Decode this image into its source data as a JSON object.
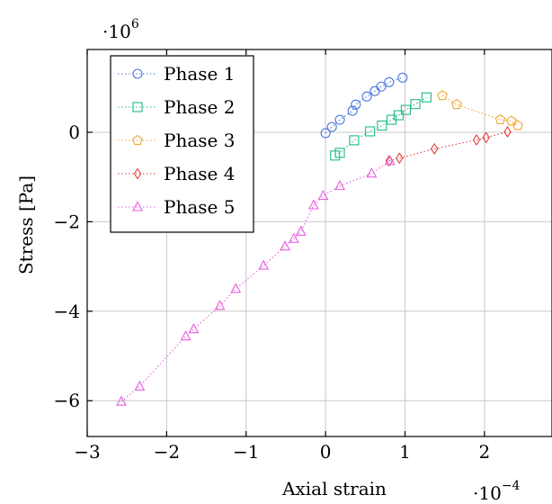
{
  "chart_data": {
    "type": "scatter",
    "title": "",
    "xlabel": "Axial strain",
    "ylabel": "Stress [Pa]",
    "x_multiplier_label": {
      "base": "·10",
      "exp": "−4"
    },
    "y_multiplier_label": {
      "base": "·10",
      "exp": "6"
    },
    "xlim": [
      -3,
      2.85
    ],
    "ylim": [
      -6.8,
      1.85
    ],
    "x_ticks": [
      -3,
      -2,
      -1,
      0,
      1,
      2
    ],
    "x_tick_labels": [
      "−3",
      "−2",
      "−1",
      "0",
      "1",
      "2"
    ],
    "y_ticks": [
      -6,
      -4,
      -2,
      0
    ],
    "y_tick_labels": [
      "−6",
      "−4",
      "−2",
      "0"
    ],
    "grid": true,
    "legend_position": "top-left",
    "series": [
      {
        "name": "Phase 1",
        "color": "#4a78e0",
        "marker": "circle",
        "x": [
          0.0,
          0.08,
          0.18,
          0.34,
          0.38,
          0.52,
          0.62,
          0.7,
          0.8,
          0.97
        ],
        "y": [
          -0.02,
          0.12,
          0.28,
          0.48,
          0.62,
          0.8,
          0.92,
          1.02,
          1.12,
          1.22
        ]
      },
      {
        "name": "Phase 2",
        "color": "#1fb98a",
        "marker": "square",
        "x": [
          0.12,
          0.18,
          0.36,
          0.56,
          0.71,
          0.83,
          0.92,
          1.01,
          1.13,
          1.27
        ],
        "y": [
          -0.52,
          -0.46,
          -0.18,
          0.02,
          0.15,
          0.28,
          0.38,
          0.5,
          0.63,
          0.78
        ]
      },
      {
        "name": "Phase 3",
        "color": "#f2a431",
        "marker": "pentagon",
        "x": [
          1.47,
          1.65,
          2.2,
          2.34,
          2.42
        ],
        "y": [
          0.82,
          0.62,
          0.28,
          0.25,
          0.15
        ]
      },
      {
        "name": "Phase 4",
        "color": "#e2403a",
        "marker": "diamond",
        "x": [
          0.8,
          0.93,
          1.37,
          1.9,
          2.02,
          2.29
        ],
        "y": [
          -0.64,
          -0.58,
          -0.37,
          -0.17,
          -0.12,
          0.01
        ]
      },
      {
        "name": "Phase 5",
        "color": "#e85ee0",
        "marker": "triangle",
        "x": [
          -2.57,
          -2.34,
          -1.76,
          -1.66,
          -1.33,
          -1.13,
          -0.78,
          -0.51,
          -0.4,
          -0.31,
          -0.15,
          -0.03,
          0.18,
          0.58,
          0.81
        ],
        "y": [
          -6.02,
          -5.68,
          -4.56,
          -4.4,
          -3.88,
          -3.5,
          -2.98,
          -2.55,
          -2.38,
          -2.22,
          -1.63,
          -1.42,
          -1.2,
          -0.92,
          -0.64
        ]
      }
    ]
  }
}
